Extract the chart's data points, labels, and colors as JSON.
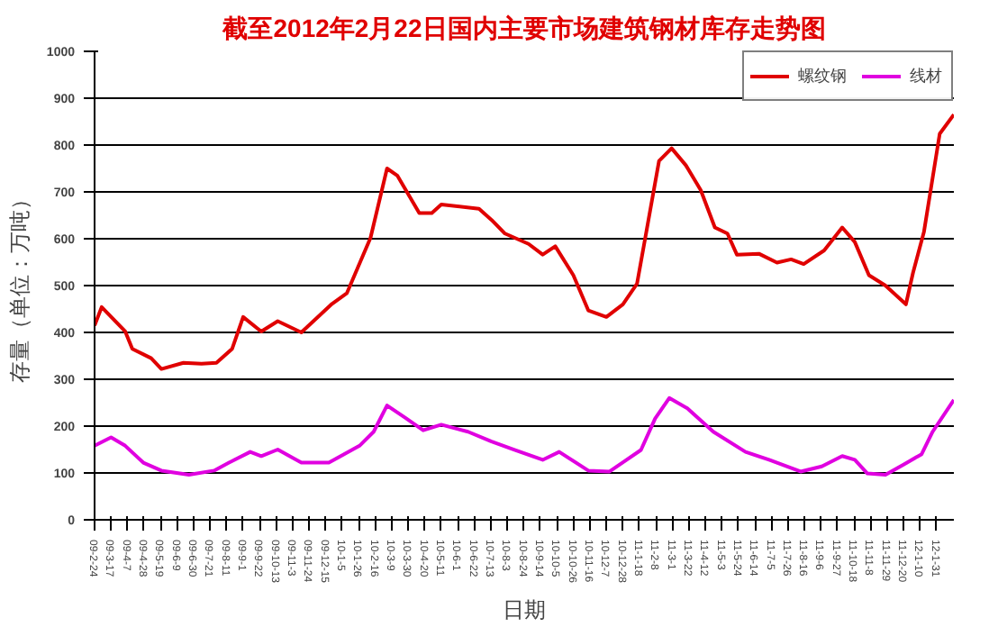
{
  "chart_data": {
    "type": "line",
    "title": "截至2012年2月22日国内主要市场建筑钢材库存走势图",
    "xlabel": "日期",
    "ylabel": "存量（单位：万吨）",
    "ylim": [
      0,
      1000
    ],
    "yticks": [
      0,
      100,
      200,
      300,
      400,
      500,
      600,
      700,
      800,
      900,
      1000
    ],
    "xlim": [
      "2009-02-24",
      "2012-02-22"
    ],
    "xticks": [
      {
        "value": "2009-02-24",
        "label": "09-2-24"
      },
      {
        "value": "2009-03-17",
        "label": "09-3-17"
      },
      {
        "value": "2009-04-07",
        "label": "09-4-7"
      },
      {
        "value": "2009-04-28",
        "label": "09-4-28"
      },
      {
        "value": "2009-05-19",
        "label": "09-5-19"
      },
      {
        "value": "2009-06-09",
        "label": "09-6-9"
      },
      {
        "value": "2009-06-30",
        "label": "09-6-30"
      },
      {
        "value": "2009-07-21",
        "label": "09-7-21"
      },
      {
        "value": "2009-08-11",
        "label": "09-8-11"
      },
      {
        "value": "2009-09-01",
        "label": "09-9-1"
      },
      {
        "value": "2009-09-22",
        "label": "09-9-22"
      },
      {
        "value": "2009-10-13",
        "label": "09-10-13"
      },
      {
        "value": "2009-11-03",
        "label": "09-11-3"
      },
      {
        "value": "2009-11-24",
        "label": "09-11-24"
      },
      {
        "value": "2009-12-15",
        "label": "09-12-15"
      },
      {
        "value": "2010-01-05",
        "label": "10-1-5"
      },
      {
        "value": "2010-01-26",
        "label": "10-1-26"
      },
      {
        "value": "2010-02-16",
        "label": "10-2-16"
      },
      {
        "value": "2010-03-09",
        "label": "10-3-9"
      },
      {
        "value": "2010-03-30",
        "label": "10-3-30"
      },
      {
        "value": "2010-04-20",
        "label": "10-4-20"
      },
      {
        "value": "2010-05-11",
        "label": "10-5-11"
      },
      {
        "value": "2010-06-01",
        "label": "10-6-1"
      },
      {
        "value": "2010-06-22",
        "label": "10-6-22"
      },
      {
        "value": "2010-07-13",
        "label": "10-7-13"
      },
      {
        "value": "2010-08-03",
        "label": "10-8-3"
      },
      {
        "value": "2010-08-24",
        "label": "10-8-24"
      },
      {
        "value": "2010-09-14",
        "label": "10-9-14"
      },
      {
        "value": "2010-10-05",
        "label": "10-10-5"
      },
      {
        "value": "2010-10-26",
        "label": "10-10-26"
      },
      {
        "value": "2010-11-16",
        "label": "10-11-16"
      },
      {
        "value": "2010-12-07",
        "label": "10-12-7"
      },
      {
        "value": "2010-12-28",
        "label": "10-12-28"
      },
      {
        "value": "2011-01-18",
        "label": "11-1-18"
      },
      {
        "value": "2011-02-08",
        "label": "11-2-8"
      },
      {
        "value": "2011-03-01",
        "label": "11-3-1"
      },
      {
        "value": "2011-03-22",
        "label": "11-3-22"
      },
      {
        "value": "2011-04-12",
        "label": "11-4-12"
      },
      {
        "value": "2011-05-03",
        "label": "11-5-3"
      },
      {
        "value": "2011-05-24",
        "label": "11-5-24"
      },
      {
        "value": "2011-06-14",
        "label": "11-6-14"
      },
      {
        "value": "2011-07-05",
        "label": "11-7-5"
      },
      {
        "value": "2011-07-26",
        "label": "11-7-26"
      },
      {
        "value": "2011-08-16",
        "label": "11-8-16"
      },
      {
        "value": "2011-09-06",
        "label": "11-9-6"
      },
      {
        "value": "2011-09-27",
        "label": "11-9-27"
      },
      {
        "value": "2011-10-18",
        "label": "11-10-18"
      },
      {
        "value": "2011-11-08",
        "label": "11-11-8"
      },
      {
        "value": "2011-11-29",
        "label": "11-11-29"
      },
      {
        "value": "2011-12-20",
        "label": "11-12-20"
      },
      {
        "value": "2012-01-10",
        "label": "12-1-10"
      },
      {
        "value": "2012-01-31",
        "label": "12-1-31"
      }
    ],
    "grid": "y",
    "legend": "top right",
    "series": [
      {
        "name": "螺纹钢",
        "color": "#e00000",
        "x": [
          "2009-02-24",
          "2009-03-05",
          "2009-04-04",
          "2009-04-13",
          "2009-05-07",
          "2009-05-20",
          "2009-06-17",
          "2009-07-10",
          "2009-07-29",
          "2009-08-18",
          "2009-09-01",
          "2009-09-24",
          "2009-10-15",
          "2009-11-14",
          "2009-12-23",
          "2010-01-11",
          "2010-02-10",
          "2010-03-03",
          "2010-03-16",
          "2010-04-13",
          "2010-04-29",
          "2010-05-11",
          "2010-06-28",
          "2010-07-14",
          "2010-07-31",
          "2010-08-30",
          "2010-09-17",
          "2010-10-03",
          "2010-10-26",
          "2010-11-14",
          "2010-12-07",
          "2010-12-28",
          "2011-01-15",
          "2011-02-12",
          "2011-02-28",
          "2011-03-18",
          "2011-04-06",
          "2011-04-24",
          "2011-05-10",
          "2011-05-22",
          "2011-06-19",
          "2011-07-12",
          "2011-07-30",
          "2011-08-15",
          "2011-09-10",
          "2011-10-03",
          "2011-10-19",
          "2011-11-06",
          "2011-11-27",
          "2011-12-23",
          "2012-01-01",
          "2012-01-15",
          "2012-02-04",
          "2012-02-22"
        ],
        "values": [
          415,
          454,
          402,
          365,
          345,
          322,
          335,
          333,
          335,
          365,
          433,
          402,
          424,
          400,
          461,
          484,
          602,
          750,
          735,
          655,
          655,
          673,
          664,
          640,
          611,
          589,
          566,
          584,
          522,
          447,
          433,
          460,
          504,
          766,
          793,
          757,
          704,
          624,
          611,
          566,
          568,
          549,
          556,
          546,
          575,
          624,
          593,
          522,
          500,
          460,
          527,
          615,
          824,
          865
        ]
      },
      {
        "name": "线材",
        "color": "#e000e0",
        "x": [
          "2009-02-24",
          "2009-03-17",
          "2009-04-04",
          "2009-04-27",
          "2009-05-20",
          "2009-06-24",
          "2009-07-26",
          "2009-08-14",
          "2009-09-10",
          "2009-09-24",
          "2009-10-15",
          "2009-11-14",
          "2009-12-19",
          "2010-01-27",
          "2010-02-14",
          "2010-03-03",
          "2010-03-26",
          "2010-04-18",
          "2010-05-11",
          "2010-06-14",
          "2010-07-14",
          "2010-08-13",
          "2010-09-17",
          "2010-10-08",
          "2010-11-14",
          "2010-12-11",
          "2011-01-20",
          "2011-02-07",
          "2011-02-25",
          "2011-03-20",
          "2011-04-22",
          "2011-06-02",
          "2011-07-02",
          "2011-08-11",
          "2011-09-07",
          "2011-10-03",
          "2011-10-19",
          "2011-11-04",
          "2011-11-27",
          "2011-12-20",
          "2012-01-12",
          "2012-01-26",
          "2012-02-22"
        ],
        "values": [
          158,
          176,
          158,
          122,
          105,
          96,
          105,
          122,
          145,
          136,
          150,
          122,
          122,
          158,
          188,
          244,
          218,
          191,
          203,
          188,
          167,
          149,
          128,
          145,
          105,
          103,
          149,
          216,
          260,
          238,
          188,
          145,
          128,
          103,
          114,
          136,
          128,
          99,
          96,
          118,
          140,
          188,
          256
        ]
      }
    ]
  }
}
